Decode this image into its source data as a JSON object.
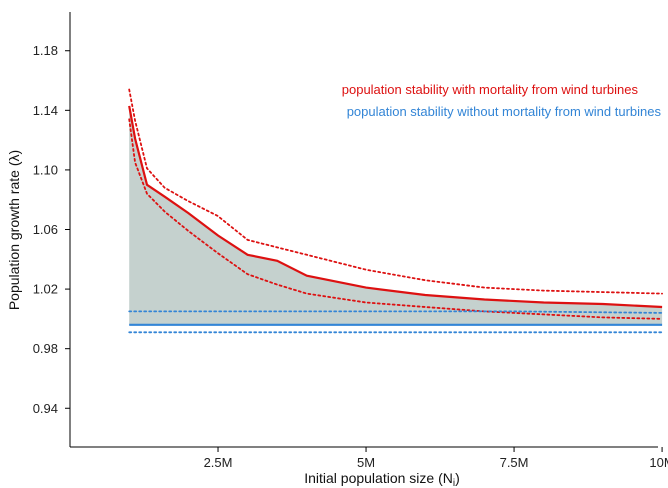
{
  "chart_data": {
    "type": "line",
    "title": "",
    "xlabel": "Initial population size (N",
    "xlabel_sub": "i",
    "xlabel_suffix": ")",
    "ylabel": "Population growth rate (λ)",
    "xlim": [
      0,
      10.1
    ],
    "ylim": [
      0.914,
      1.206
    ],
    "x_ticks": [
      2.5,
      5,
      7.5,
      10
    ],
    "x_tick_labels": [
      "2.5M",
      "5M",
      "7.5M",
      "10M"
    ],
    "y_ticks": [
      0.94,
      0.98,
      1.02,
      1.06,
      1.1,
      1.14,
      1.18
    ],
    "y_tick_labels": [
      "0.94",
      "0.98",
      "1.02",
      "1.06",
      "1.10",
      "1.14",
      "1.18"
    ],
    "grid": false,
    "legend_position": "top-right",
    "colors": {
      "with": "#dd1111",
      "without": "#3385d6",
      "fill": "#b7c6c2"
    },
    "series": [
      {
        "name": "population stability with mortality from wind turbines",
        "x": [
          1,
          1.1,
          1.3,
          1.6,
          2,
          2.5,
          3,
          3.5,
          4,
          5,
          6,
          7,
          8,
          9,
          10
        ],
        "mean": [
          1.143,
          1.121,
          1.09,
          1.082,
          1.071,
          1.056,
          1.043,
          1.039,
          1.029,
          1.021,
          1.016,
          1.013,
          1.011,
          1.01,
          1.008
        ],
        "upper": [
          1.154,
          1.133,
          1.101,
          1.088,
          1.079,
          1.069,
          1.053,
          1.048,
          1.043,
          1.033,
          1.026,
          1.021,
          1.019,
          1.018,
          1.017
        ],
        "lower": [
          1.134,
          1.105,
          1.084,
          1.072,
          1.059,
          1.044,
          1.03,
          1.023,
          1.017,
          1.011,
          1.008,
          1.005,
          1.003,
          1.001,
          1.0
        ]
      },
      {
        "name": "population stability without mortality from wind turbines",
        "x": [
          1,
          2.5,
          5,
          7.5,
          10
        ],
        "mean": [
          0.996,
          0.996,
          0.996,
          0.996,
          0.996
        ],
        "upper": [
          1.005,
          1.005,
          1.005,
          1.005,
          1.004
        ],
        "lower": [
          0.991,
          0.991,
          0.991,
          0.991,
          0.991
        ]
      }
    ]
  }
}
